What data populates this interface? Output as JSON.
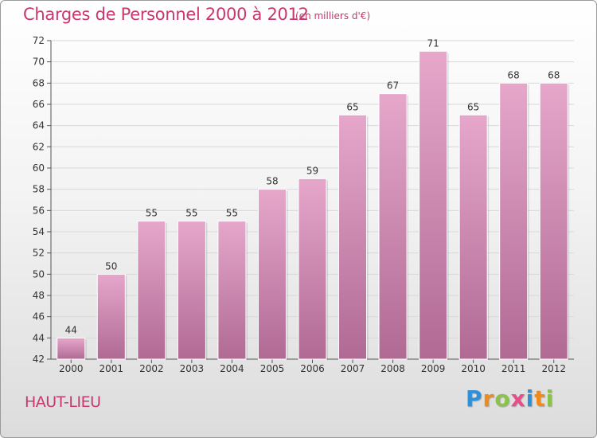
{
  "chart_data": {
    "type": "bar",
    "title": "Charges de Personnel 2000 à 2012",
    "subtitle": "(en milliers d'€)",
    "categories": [
      "2000",
      "2001",
      "2002",
      "2003",
      "2004",
      "2005",
      "2006",
      "2007",
      "2008",
      "2009",
      "2010",
      "2011",
      "2012"
    ],
    "values": [
      44,
      50,
      55,
      55,
      55,
      58,
      59,
      65,
      67,
      71,
      65,
      68,
      68
    ],
    "ylim": [
      42,
      72
    ],
    "yticks": [
      42,
      44,
      46,
      48,
      50,
      52,
      54,
      56,
      58,
      60,
      62,
      64,
      66,
      68,
      70,
      72
    ],
    "grid": true,
    "xlabel": "",
    "ylabel": "",
    "bar_color": "#d98fb8"
  },
  "footer": {
    "town": "HAUT-LIEU",
    "brand": [
      "P",
      "r",
      "o",
      "x",
      "i",
      "t",
      "i"
    ],
    "brand_colors": [
      "#2f8fd8",
      "#f08a1c",
      "#8bc34a",
      "#e94c8b",
      "#2f8fd8",
      "#f08a1c",
      "#8bc34a"
    ]
  },
  "colors": {
    "accent": "#c8376e"
  }
}
